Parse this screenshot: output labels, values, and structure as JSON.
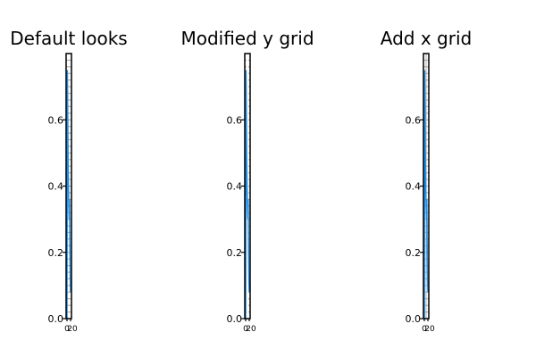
{
  "chart_data": [
    {
      "type": "line",
      "title": "Default looks",
      "xlabel": "",
      "ylabel": "",
      "ylim": [
        0,
        0.8
      ],
      "yticks": [
        "0.0",
        "0.2",
        "0.4",
        "0.6"
      ],
      "xtick_labels": [
        "0",
        "20"
      ],
      "grid": {
        "y": "default",
        "x": "default"
      },
      "series": [
        {
          "values": [
            0.0,
            0.75,
            0.62,
            0.48,
            0.4,
            0.34,
            0.3,
            0.36,
            0.22,
            0.12,
            0.08
          ]
        }
      ]
    },
    {
      "type": "line",
      "title": "Modified y grid",
      "xlabel": "",
      "ylabel": "",
      "ylim": [
        0,
        0.8
      ],
      "yticks": [
        "0.0",
        "0.2",
        "0.4",
        "0.6"
      ],
      "xtick_labels": [
        "0",
        "20"
      ],
      "grid": {
        "y": "modified",
        "x": "none"
      },
      "series": [
        {
          "values": [
            0.0,
            0.75,
            0.62,
            0.48,
            0.4,
            0.34,
            0.3,
            0.36,
            0.22,
            0.12,
            0.08
          ]
        }
      ]
    },
    {
      "type": "line",
      "title": "Add x grid",
      "xlabel": "",
      "ylabel": "",
      "ylim": [
        0,
        0.8
      ],
      "yticks": [
        "0.0",
        "0.2",
        "0.4",
        "0.6"
      ],
      "xtick_labels": [
        "0",
        "20"
      ],
      "grid": {
        "y": "default",
        "x": "on"
      },
      "series": [
        {
          "values": [
            0.0,
            0.75,
            0.62,
            0.48,
            0.4,
            0.34,
            0.3,
            0.36,
            0.22,
            0.12,
            0.08
          ]
        }
      ]
    }
  ],
  "colors": {
    "line": "#1f8fe6",
    "grid": "#b0b0b0",
    "axis": "#000000"
  }
}
